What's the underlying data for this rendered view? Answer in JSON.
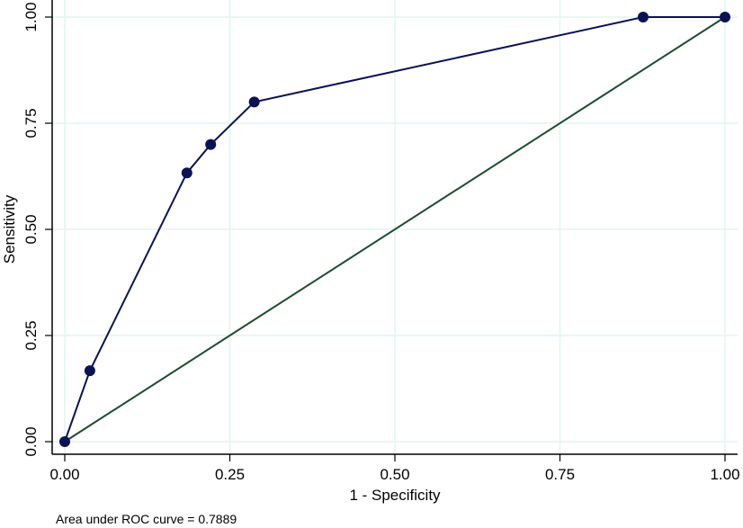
{
  "chart_data": {
    "type": "line",
    "title": "",
    "xlabel": "1 - Specificity",
    "ylabel": "Sensitivity",
    "xlim": [
      0,
      1
    ],
    "ylim": [
      0,
      1
    ],
    "grid": true,
    "legend": null,
    "x_ticks": [
      "0.00",
      "0.25",
      "0.50",
      "0.75",
      "1.00"
    ],
    "y_ticks": [
      "0.00",
      "0.25",
      "0.50",
      "0.75",
      "1.00"
    ],
    "series": [
      {
        "name": "ROC curve",
        "color": "#0b1354",
        "markers": true,
        "x": [
          0.0,
          0.038,
          0.185,
          0.221,
          0.287,
          0.876,
          1.0
        ],
        "y": [
          0.0,
          0.167,
          0.633,
          0.7,
          0.8,
          1.0,
          1.0
        ]
      },
      {
        "name": "Reference line",
        "color": "#1a4d2e",
        "markers": false,
        "x": [
          0,
          1
        ],
        "y": [
          0,
          1
        ]
      }
    ],
    "annotations": [
      "Area under ROC curve = 0.7889"
    ]
  },
  "colors": {
    "grid": "#e0f5ee",
    "axis": "#000000",
    "roc": "#0b1354",
    "reference": "#1a4d2e"
  },
  "note": "Area under ROC curve = 0.7889"
}
